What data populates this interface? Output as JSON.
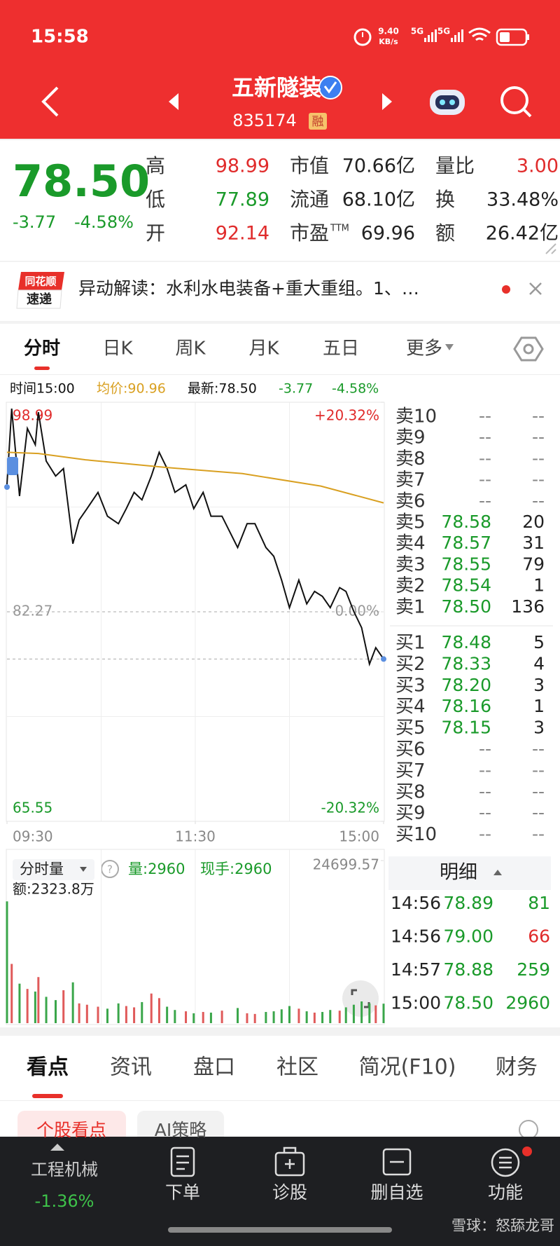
{
  "status_bar": {
    "time": "15:58",
    "speed": "9.40",
    "speed_unit": "KB/s",
    "net1": "5G",
    "net2": "5G"
  },
  "header": {
    "title": "五新隧装",
    "code": "835174",
    "badge": "融"
  },
  "quote": {
    "price": "78.50",
    "change": "-3.77",
    "change_pct": "-4.58%",
    "stats": [
      [
        {
          "label": "高",
          "value": "98.99",
          "color": "#e02b2b"
        },
        {
          "label": "低",
          "value": "77.89",
          "color": "#1a9a2a"
        },
        {
          "label": "开",
          "value": "92.14",
          "color": "#e02b2b"
        }
      ],
      [
        {
          "label": "市值",
          "value": "70.66亿",
          "color": "#222222"
        },
        {
          "label": "流通",
          "value": "68.10亿",
          "color": "#222222"
        },
        {
          "label": "市盈",
          "sup": "TTM",
          "value": "69.96",
          "color": "#222222"
        }
      ],
      [
        {
          "label": "量比",
          "value": "3.00",
          "color": "#e02b2b"
        },
        {
          "label": "换",
          "value": "33.48%",
          "color": "#222222"
        },
        {
          "label": "额",
          "value": "26.42亿",
          "color": "#222222"
        }
      ]
    ]
  },
  "news": {
    "logo_top": "同花顺",
    "logo_bottom": "速递",
    "text": "异动解读：水利水电装备+重大重组。1、…"
  },
  "chart_tabs": [
    "分时",
    "日K",
    "周K",
    "月K",
    "五日",
    "更多"
  ],
  "info": {
    "time": "时间15:00",
    "avg": "均价:90.96",
    "latest": "最新:78.50",
    "change": "-3.77",
    "change_pct": "-4.58%"
  },
  "chart_data": [
    {
      "type": "line",
      "xlim": [
        0,
        240
      ],
      "ylim": [
        65.55,
        98.99
      ],
      "yticks": [
        98.99,
        82.27,
        65.55
      ],
      "y2lim": [
        -20.32,
        20.32
      ],
      "y2ticks": [
        {
          "value": 20.32,
          "label": "+20.32%"
        },
        {
          "value": 0,
          "label": "0.00%"
        },
        {
          "value": -20.32,
          "label": "-20.32%"
        }
      ],
      "xticks": [
        {
          "value": 0,
          "label": "09:30"
        },
        {
          "value": 120,
          "label": "11:30"
        },
        {
          "value": 240,
          "label": "15:00"
        }
      ],
      "series": [
        {
          "color": "#111111",
          "x": [
            0,
            3,
            8,
            13,
            18,
            20,
            25,
            31,
            36,
            42,
            46,
            51,
            58,
            64,
            71,
            76,
            81,
            86,
            92,
            97,
            102,
            107,
            114,
            119,
            125,
            130,
            137,
            147,
            153,
            158,
            165,
            170,
            175,
            180,
            186,
            191,
            196,
            201,
            206,
            212,
            216,
            221,
            226,
            231,
            235,
            240
          ],
          "values": [
            92.45,
            98.48,
            91.5,
            96.9,
            95.6,
            98.2,
            94.3,
            93.1,
            93.7,
            87.7,
            89.6,
            90.5,
            91.8,
            89.9,
            89.3,
            90.5,
            91.8,
            91.2,
            93.1,
            95.0,
            93.7,
            91.8,
            92.4,
            90.5,
            91.8,
            89.9,
            89.9,
            87.4,
            89.3,
            89.3,
            87.4,
            86.7,
            84.8,
            82.6,
            84.8,
            82.9,
            83.9,
            83.5,
            82.6,
            84.2,
            83.9,
            82.3,
            81.0,
            78.1,
            79.4,
            78.5
          ]
        },
        {
          "color": "#d9a021",
          "x": [
            0,
            20,
            50,
            100,
            150,
            200,
            240
          ],
          "values": [
            95.0,
            94.9,
            94.4,
            93.8,
            93.3,
            92.3,
            90.96
          ]
        }
      ]
    },
    {
      "type": "bar",
      "xlim": [
        0,
        240
      ],
      "ylim": [
        0,
        24699.57
      ],
      "yticks": [
        24699.57
      ],
      "x": [
        0,
        3,
        8,
        13,
        18,
        20,
        25,
        31,
        36,
        42,
        46,
        51,
        58,
        64,
        71,
        76,
        81,
        86,
        92,
        97,
        102,
        107,
        114,
        119,
        125,
        130,
        137,
        147,
        153,
        158,
        165,
        170,
        175,
        180,
        186,
        191,
        196,
        201,
        206,
        212,
        216,
        221,
        226,
        231,
        235,
        240
      ],
      "values": [
        18500,
        9000,
        6000,
        5200,
        4800,
        7000,
        4000,
        3500,
        5000,
        6200,
        3000,
        2800,
        2500,
        2200,
        3000,
        2600,
        2400,
        3200,
        4500,
        3800,
        2500,
        2000,
        1800,
        1500,
        1700,
        1600,
        1900,
        2300,
        1500,
        1400,
        1700,
        1800,
        2100,
        2600,
        2200,
        1800,
        1600,
        1700,
        2000,
        1900,
        2400,
        2800,
        3300,
        3000,
        2700,
        2960
      ]
    }
  ],
  "volume_panel": {
    "title": "分时量",
    "volume": "量:2960",
    "hand": "现手:2960",
    "amount": "额:2323.8万"
  },
  "order_book": {
    "asks": [
      {
        "label": "卖10",
        "price": "--",
        "volume": "--"
      },
      {
        "label": "卖9",
        "price": "--",
        "volume": "--"
      },
      {
        "label": "卖8",
        "price": "--",
        "volume": "--"
      },
      {
        "label": "卖7",
        "price": "--",
        "volume": "--"
      },
      {
        "label": "卖6",
        "price": "--",
        "volume": "--"
      },
      {
        "label": "卖5",
        "price": "78.58",
        "volume": "20"
      },
      {
        "label": "卖4",
        "price": "78.57",
        "volume": "31"
      },
      {
        "label": "卖3",
        "price": "78.55",
        "volume": "79"
      },
      {
        "label": "卖2",
        "price": "78.54",
        "volume": "1"
      },
      {
        "label": "卖1",
        "price": "78.50",
        "volume": "136"
      }
    ],
    "bids": [
      {
        "label": "买1",
        "price": "78.48",
        "volume": "5"
      },
      {
        "label": "买2",
        "price": "78.33",
        "volume": "4"
      },
      {
        "label": "买3",
        "price": "78.20",
        "volume": "3"
      },
      {
        "label": "买4",
        "price": "78.16",
        "volume": "1"
      },
      {
        "label": "买5",
        "price": "78.15",
        "volume": "3"
      },
      {
        "label": "买6",
        "price": "--",
        "volume": "--"
      },
      {
        "label": "买7",
        "price": "--",
        "volume": "--"
      },
      {
        "label": "买8",
        "price": "--",
        "volume": "--"
      },
      {
        "label": "买9",
        "price": "--",
        "volume": "--"
      },
      {
        "label": "买10",
        "price": "--",
        "volume": "--"
      }
    ]
  },
  "detail": {
    "title": "明细",
    "rows": [
      {
        "time": "14:56",
        "price": "78.89",
        "volume": "81",
        "color": "#1a9a2a"
      },
      {
        "time": "14:56",
        "price": "79.00",
        "volume": "66",
        "color": "#e02b2b"
      },
      {
        "time": "14:57",
        "price": "78.88",
        "volume": "259",
        "color": "#1a9a2a"
      },
      {
        "time": "15:00",
        "price": "78.50",
        "volume": "2960",
        "color": "#1a9a2a"
      }
    ]
  },
  "bottom_tabs": [
    "看点",
    "资讯",
    "盘口",
    "社区",
    "简况(F10)",
    "财务"
  ],
  "sub_tabs": [
    "个股看点",
    "AI策略"
  ],
  "nav": {
    "sector": "工程机械",
    "sector_change": "-1.36%",
    "items": [
      "下单",
      "诊股",
      "删自选",
      "功能"
    ]
  },
  "watermark": "雪球：怒舔龙哥"
}
